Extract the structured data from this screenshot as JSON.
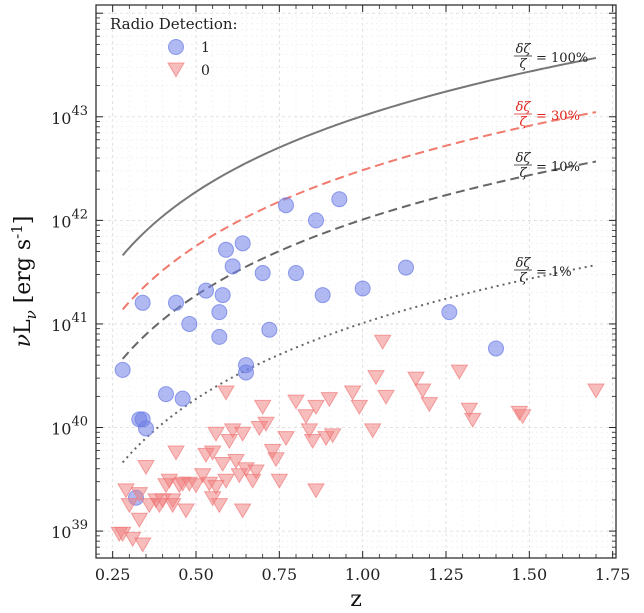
{
  "chart_data": {
    "type": "scatter",
    "xlabel": "z",
    "ylabel": "νL_ν [erg s^-1]",
    "xlim": [
      0.2,
      1.76
    ],
    "ylim": [
      5.5e+38,
      1.2e+44
    ],
    "yscale": "log",
    "grid": true,
    "x_ticks": [
      0.25,
      0.5,
      0.75,
      1.0,
      1.25,
      1.5,
      1.75
    ],
    "x_tick_labels": [
      "0.25",
      "0.50",
      "0.75",
      "1.00",
      "1.25",
      "1.50",
      "1.75"
    ],
    "y_tick_exponents": [
      39,
      40,
      41,
      42,
      43
    ],
    "legend": {
      "title": "Radio Detection:",
      "location": "top-left",
      "entries": [
        {
          "label": "1",
          "marker": "circle",
          "color": "#6f7fe6"
        },
        {
          "label": "0",
          "marker": "triangle-down",
          "color": "#ef7b7b"
        }
      ]
    },
    "series": [
      {
        "name": "1",
        "marker": "circle",
        "color": "#6f7fe6",
        "points": [
          [
            0.28,
            3.6e+40
          ],
          [
            0.32,
            2.1e+39
          ],
          [
            0.33,
            1.2e+40
          ],
          [
            0.34,
            1.2e+40
          ],
          [
            0.34,
            1.6e+41
          ],
          [
            0.35,
            9.8e+39
          ],
          [
            0.41,
            2.1e+40
          ],
          [
            0.44,
            1.6e+41
          ],
          [
            0.46,
            1.9e+40
          ],
          [
            0.48,
            1e+41
          ],
          [
            0.53,
            2.1e+41
          ],
          [
            0.57,
            7.5e+40
          ],
          [
            0.57,
            1.3e+41
          ],
          [
            0.58,
            1.9e+41
          ],
          [
            0.59,
            5.2e+41
          ],
          [
            0.61,
            3.6e+41
          ],
          [
            0.64,
            6e+41
          ],
          [
            0.65,
            4e+40
          ],
          [
            0.65,
            3.4e+40
          ],
          [
            0.7,
            3.1e+41
          ],
          [
            0.72,
            8.8e+40
          ],
          [
            0.77,
            1.4e+42
          ],
          [
            0.8,
            3.1e+41
          ],
          [
            0.86,
            1e+42
          ],
          [
            0.88,
            1.9e+41
          ],
          [
            0.93,
            1.6e+42
          ],
          [
            1.0,
            2.2e+41
          ],
          [
            1.13,
            3.5e+41
          ],
          [
            1.26,
            1.3e+41
          ],
          [
            1.4,
            5.8e+40
          ]
        ]
      },
      {
        "name": "0",
        "marker": "triangle-down",
        "color": "#ef7b7b",
        "points": [
          [
            0.27,
            9.5e+38
          ],
          [
            0.28,
            9.5e+38
          ],
          [
            0.29,
            2.5e+39
          ],
          [
            0.3,
            1.8e+39
          ],
          [
            0.31,
            8.5e+38
          ],
          [
            0.33,
            2.3e+39
          ],
          [
            0.33,
            1.3e+39
          ],
          [
            0.34,
            7.5e+38
          ],
          [
            0.35,
            4.2e+39
          ],
          [
            0.36,
            1.8e+39
          ],
          [
            0.38,
            2e+39
          ],
          [
            0.39,
            1.8e+39
          ],
          [
            0.4,
            2e+39
          ],
          [
            0.41,
            2.8e+39
          ],
          [
            0.42,
            3.1e+39
          ],
          [
            0.43,
            2e+39
          ],
          [
            0.43,
            1.8e+39
          ],
          [
            0.44,
            5.8e+39
          ],
          [
            0.45,
            2.8e+39
          ],
          [
            0.46,
            2.9e+39
          ],
          [
            0.47,
            1.6e+39
          ],
          [
            0.48,
            2.9e+39
          ],
          [
            0.5,
            2.8e+39
          ],
          [
            0.52,
            3.5e+39
          ],
          [
            0.53,
            5.5e+39
          ],
          [
            0.54,
            2.9e+39
          ],
          [
            0.55,
            2.1e+39
          ],
          [
            0.55,
            5.8e+39
          ],
          [
            0.56,
            8.8e+39
          ],
          [
            0.56,
            2.7e+39
          ],
          [
            0.57,
            1.8e+39
          ],
          [
            0.58,
            4.5e+39
          ],
          [
            0.59,
            2.2e+40
          ],
          [
            0.59,
            3.1e+39
          ],
          [
            0.6,
            7.5e+39
          ],
          [
            0.61,
            9.5e+39
          ],
          [
            0.62,
            4.8e+39
          ],
          [
            0.63,
            3.5e+39
          ],
          [
            0.64,
            8.8e+39
          ],
          [
            0.64,
            1.6e+39
          ],
          [
            0.65,
            4e+39
          ],
          [
            0.67,
            3.1e+39
          ],
          [
            0.68,
            3.8e+39
          ],
          [
            0.69,
            1e+40
          ],
          [
            0.7,
            1.6e+40
          ],
          [
            0.71,
            1.1e+40
          ],
          [
            0.73,
            6e+39
          ],
          [
            0.74,
            5e+39
          ],
          [
            0.75,
            3.1e+39
          ],
          [
            0.77,
            8e+39
          ],
          [
            0.8,
            1.8e+40
          ],
          [
            0.83,
            1.3e+40
          ],
          [
            0.84,
            9.5e+39
          ],
          [
            0.85,
            7.5e+39
          ],
          [
            0.86,
            1.6e+40
          ],
          [
            0.86,
            2.5e+39
          ],
          [
            0.89,
            8e+39
          ],
          [
            0.9,
            1.9e+40
          ],
          [
            0.91,
            8.5e+39
          ],
          [
            0.97,
            2.2e+40
          ],
          [
            0.99,
            1.6e+40
          ],
          [
            1.03,
            9.5e+39
          ],
          [
            1.04,
            3.1e+40
          ],
          [
            1.06,
            6.8e+40
          ],
          [
            1.07,
            2e+40
          ],
          [
            1.16,
            3e+40
          ],
          [
            1.18,
            2.3e+40
          ],
          [
            1.2,
            1.7e+40
          ],
          [
            1.29,
            3.5e+40
          ],
          [
            1.32,
            1.5e+40
          ],
          [
            1.33,
            1.2e+40
          ],
          [
            1.47,
            1.4e+40
          ],
          [
            1.48,
            1.3e+40
          ],
          [
            1.7,
            2.3e+40
          ]
        ]
      }
    ],
    "curves": [
      {
        "label_frac": "δζ",
        "label_den": "ζ",
        "label_value": "= 100%",
        "style": "solid",
        "color": "#777777",
        "label_color": "#222222",
        "x_range": [
          0.28,
          1.7
        ],
        "anchor_x": 0.28,
        "anchor_y": 4.6e+41,
        "end_y": 3.7e+43
      },
      {
        "label_frac": "δζ",
        "label_den": "ζ",
        "label_value": "= 30%",
        "style": "dashed",
        "color": "#f07a6e",
        "label_color": "#e0231b",
        "x_range": [
          0.28,
          1.7
        ],
        "anchor_x": 0.28,
        "anchor_y": 1.38e+41,
        "end_y": 1.11e+43
      },
      {
        "label_frac": "δζ",
        "label_den": "ζ",
        "label_value": "= 10%",
        "style": "dashed",
        "color": "#666666",
        "label_color": "#222222",
        "x_range": [
          0.28,
          1.7
        ],
        "anchor_x": 0.28,
        "anchor_y": 4.6e+40,
        "end_y": 3.7e+42
      },
      {
        "label_frac": "δζ",
        "label_den": "ζ",
        "label_value": "= 1%",
        "style": "dotted",
        "color": "#666666",
        "label_color": "#222222",
        "x_range": [
          0.28,
          1.7
        ],
        "anchor_x": 0.28,
        "anchor_y": 4.6e+39,
        "end_y": 3.7e+41
      }
    ]
  }
}
